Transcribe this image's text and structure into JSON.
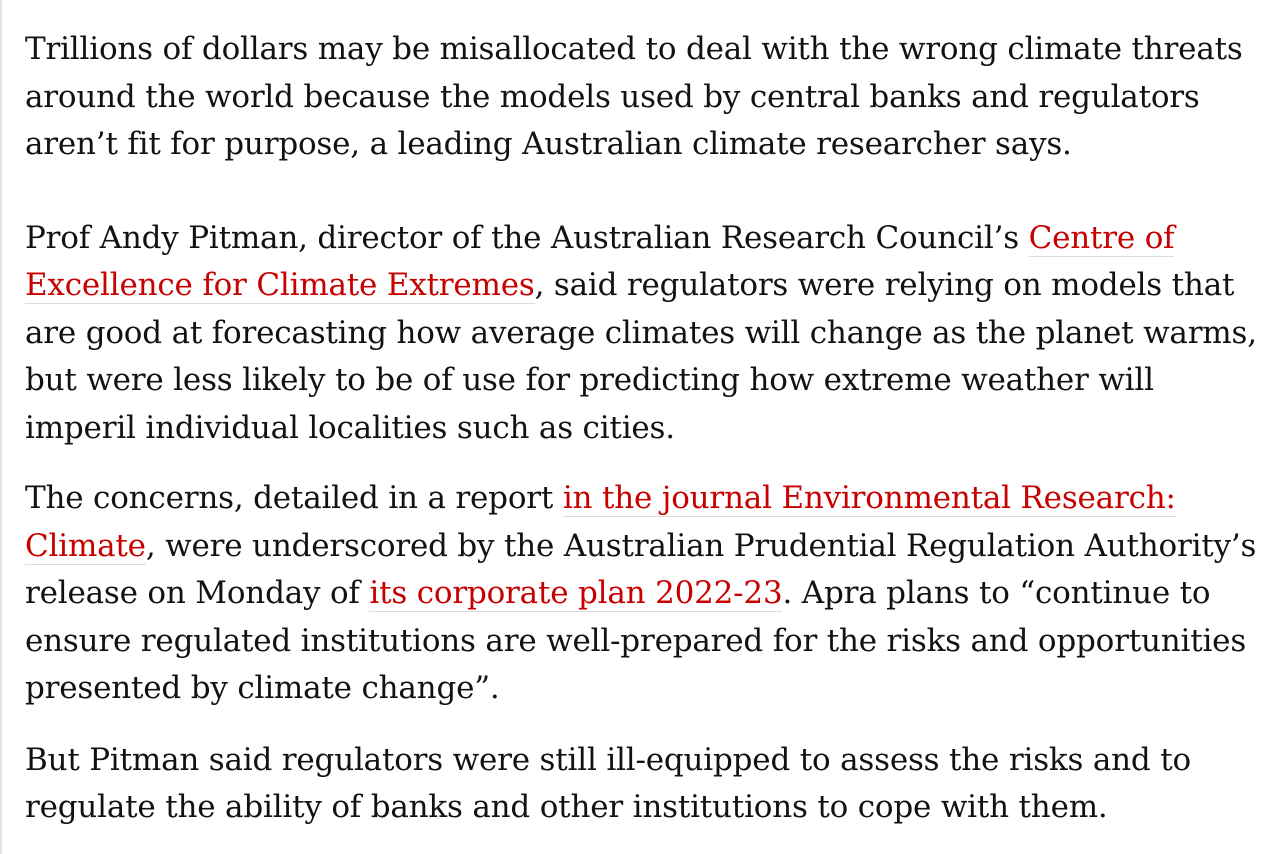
{
  "article": {
    "paragraphs": [
      {
        "segments": [
          {
            "text": "Trillions of dollars may be misallocated to deal with the wrong climate threats around the world because the models used by central banks and regulators aren’t fit for purpose, a leading Australian climate researcher says."
          }
        ]
      },
      {
        "segments": [
          {
            "text": "Prof Andy Pitman, director of the Australian Research Council’s "
          },
          {
            "link": "Centre of Excellence for Climate Extremes"
          },
          {
            "text": ", said regulators were relying on models that are good at forecasting how average climates will change as the planet warms, but were less likely to be of use for predicting how extreme weather will imperil individual localities such as cities."
          }
        ]
      },
      {
        "segments": [
          {
            "text": "The concerns, detailed in a report "
          },
          {
            "link": "in the journal Environmental Research: Climate"
          },
          {
            "text": ", were underscored by the Australian Prudential Regulation Authority’s release on Monday of "
          },
          {
            "link": "its corporate plan 2022-23"
          },
          {
            "text": ". Apra plans to “continue to ensure regulated institutions are well-prepared for the risks and opportunities presented by climate change”."
          }
        ]
      },
      {
        "segments": [
          {
            "text": "But Pitman said regulators were still ill-equipped to assess the risks and to regulate the ability of banks and other institutions to cope with them."
          }
        ]
      }
    ]
  },
  "colors": {
    "text": "#121212",
    "link": "#c70000",
    "link_underline": "#dcdcdc"
  }
}
